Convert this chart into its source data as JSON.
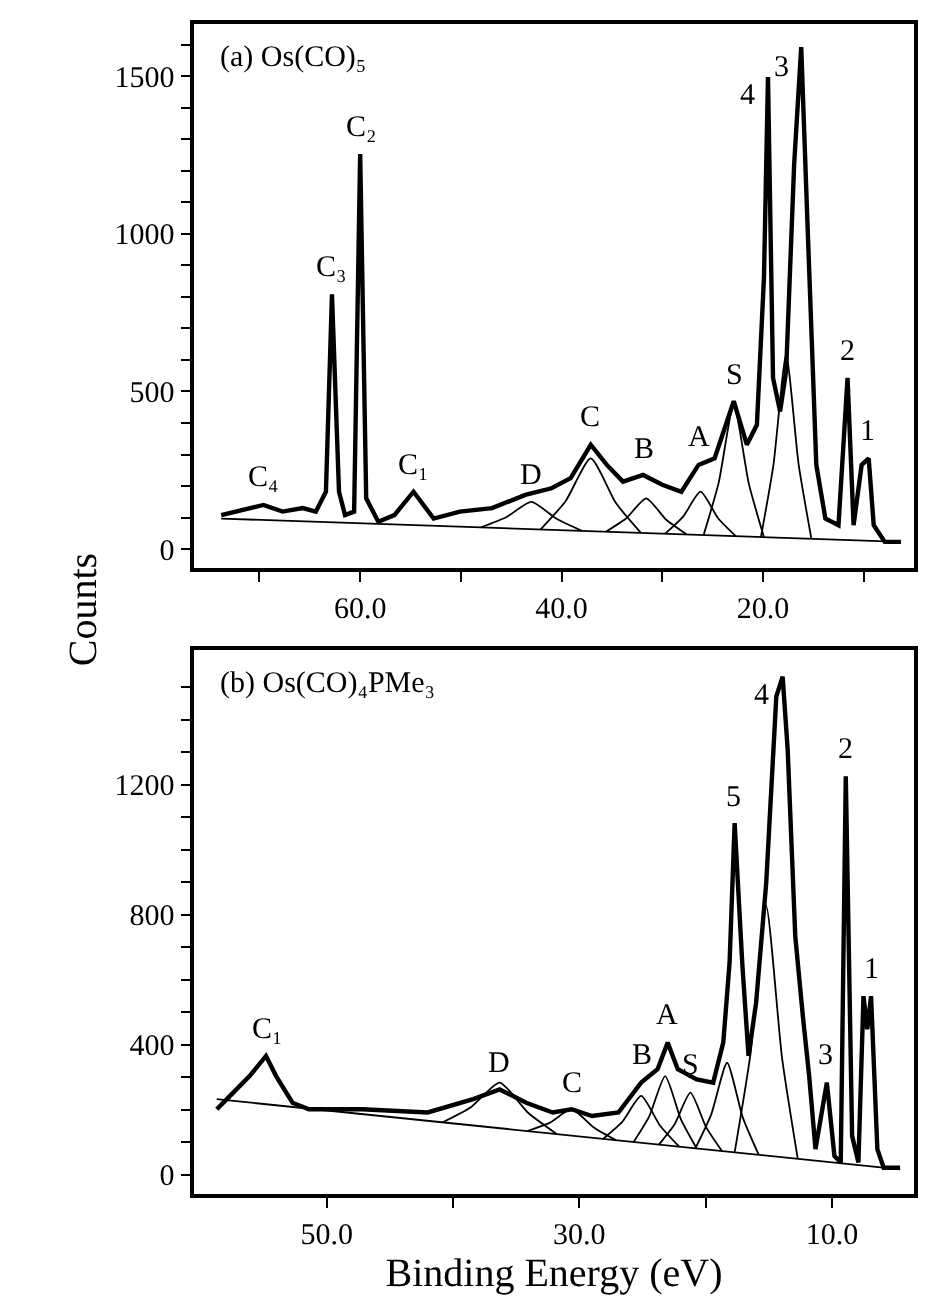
{
  "chart_data": [
    {
      "type": "line",
      "ylabel": "Counts",
      "xlim": [
        76.5,
        5
      ],
      "ylim": [
        -60,
        1665
      ],
      "xticks": [
        {
          "value": 70,
          "label": null
        },
        {
          "value": 60,
          "label": "60.0"
        },
        {
          "value": 50,
          "label": null
        },
        {
          "value": 40,
          "label": "40.0"
        },
        {
          "value": 30,
          "label": null
        },
        {
          "value": 20,
          "label": "20.0"
        },
        {
          "value": 10,
          "label": null
        }
      ],
      "yticks": [
        0,
        {
          "value": 100,
          "label": null
        },
        {
          "value": 200,
          "label": null
        },
        {
          "value": 300,
          "label": null
        },
        {
          "value": 400,
          "label": null
        },
        500,
        {
          "value": 600,
          "label": null
        },
        {
          "value": 700,
          "label": null
        },
        {
          "value": 800,
          "label": null
        },
        {
          "value": 900,
          "label": null
        },
        1000,
        {
          "value": 1100,
          "label": null
        },
        {
          "value": 1200,
          "label": null
        },
        {
          "value": 1300,
          "label": null
        },
        {
          "value": 1400,
          "label": null
        },
        1500,
        {
          "value": 1600,
          "label": null
        }
      ],
      "series": [
        {
          "color": "#000000",
          "x": [
            73.8,
            69.6,
            67.7,
            65.7,
            64.4,
            63.4,
            62.8,
            62.1,
            61.5,
            60.6,
            60,
            59.4,
            58.2,
            56.6,
            54.7,
            52.7,
            50.1,
            46.9,
            43.6,
            41.0,
            39.1,
            37.1,
            35.5,
            33.9,
            31.9,
            30,
            28.1,
            26.4,
            24.8,
            22.9,
            21.6,
            20.6,
            19.9,
            19.5,
            19,
            18.3,
            17.7,
            16.9,
            16.2,
            15.6,
            14.7,
            13.8,
            12.5,
            11.6,
            11.0,
            10.2,
            9.5,
            9.0,
            7.9,
            6.3
          ],
          "values": [
            108,
            140,
            119,
            130,
            119,
            182,
            808,
            182,
            108,
            119,
            1253,
            161,
            87,
            108,
            182,
            97,
            119,
            130,
            172,
            193,
            225,
            331,
            267,
            214,
            235,
            204,
            182,
            267,
            288,
            469,
            331,
            394,
            861,
            1497,
            543,
            437,
            564,
            1221,
            1592,
            1052,
            267,
            97,
            76,
            543,
            76,
            267,
            288,
            76,
            23,
            23
          ]
        },
        {
          "color": "#000000",
          "x": [
            73.8,
            6.3
          ],
          "values": [
            97,
            23
          ]
        },
        {
          "color": "#000000",
          "x": [
            48,
            45.5,
            43,
            40.5,
            38
          ],
          "values": [
            69,
            101,
            150,
            96,
            58
          ]
        },
        {
          "color": "#000000",
          "x": [
            42.1,
            39.6,
            37.1,
            34.6,
            32.1
          ],
          "values": [
            62,
            152,
            288,
            146,
            51
          ]
        },
        {
          "color": "#000000",
          "x": [
            35.6,
            33.6,
            31.6,
            29.6,
            27.6
          ],
          "values": [
            55,
            97,
            161,
            93,
            47
          ]
        },
        {
          "color": "#000000",
          "x": [
            29.7,
            27.95,
            26.2,
            24.45,
            22.7
          ],
          "values": [
            49,
            102,
            182,
            98,
            41
          ]
        },
        {
          "color": "#000000",
          "x": [
            25.9,
            24.4,
            22.9,
            21.4,
            19.9
          ],
          "values": [
            44,
            210,
            458,
            207,
            38
          ]
        },
        {
          "color": "#000000",
          "x": [
            20.2,
            18.95,
            17.7,
            16.45,
            15.2
          ],
          "values": [
            38,
            269,
            617,
            267,
            35
          ]
        }
      ],
      "annotations": [
        "(a) Os(CO)₅",
        {
          "text": "C₄",
          "x": 69.6,
          "y": 140
        },
        {
          "text": "C₃",
          "x": 62.8,
          "y": 808
        },
        {
          "text": "C₂",
          "x": 60,
          "y": 1253
        },
        {
          "text": "C₁",
          "x": 54.7,
          "y": 182
        },
        {
          "text": "D",
          "x": 43,
          "y": 150
        },
        {
          "text": "C",
          "x": 37.1,
          "y": 331
        },
        {
          "text": "B",
          "x": 31.9,
          "y": 235
        },
        {
          "text": "A",
          "x": 26.4,
          "y": 267
        },
        {
          "text": "S",
          "x": 22.9,
          "y": 469
        },
        {
          "text": "4",
          "x": 19.5,
          "y": 1497
        },
        {
          "text": "3",
          "x": 16.2,
          "y": 1592
        },
        {
          "text": "2",
          "x": 11.6,
          "y": 543
        },
        {
          "text": "1",
          "x": 9.5,
          "y": 288
        }
      ]
    },
    {
      "type": "line",
      "xlabel": "Binding Energy (eV)",
      "xlim": [
        60.5,
        3.5
      ],
      "ylim": [
        -60,
        1615
      ],
      "xticks": [
        {
          "value": 50,
          "label": "50.0"
        },
        {
          "value": 40,
          "label": null
        },
        {
          "value": 30,
          "label": "30.0"
        },
        {
          "value": 20,
          "label": null
        },
        {
          "value": 10,
          "label": "10.0"
        }
      ],
      "yticks": [
        0,
        {
          "value": 100,
          "label": null
        },
        {
          "value": 200,
          "label": null
        },
        {
          "value": 300,
          "label": null
        },
        400,
        {
          "value": 500,
          "label": null
        },
        {
          "value": 600,
          "label": null
        },
        {
          "value": 700,
          "label": null
        },
        800,
        {
          "value": 900,
          "label": null
        },
        {
          "value": 1000,
          "label": null
        },
        {
          "value": 1100,
          "label": null
        },
        1200,
        {
          "value": 1300,
          "label": null
        },
        {
          "value": 1400,
          "label": null
        },
        {
          "value": 1500,
          "label": null
        }
      ],
      "series": [
        {
          "color": "#000000",
          "x": [
            58.7,
            57.9,
            56.1,
            54.8,
            54.0,
            52.7,
            51.4,
            47.2,
            42.0,
            38.4,
            36.3,
            34.2,
            32.1,
            30.6,
            29.0,
            26.9,
            25.1,
            23.8,
            23.0,
            22.2,
            20.7,
            19.4,
            18.6,
            18.1,
            17.7,
            17.1,
            16.6,
            16.0,
            15.2,
            14.4,
            13.9,
            13.5,
            12.9,
            12.3,
            11.8,
            11.3,
            10.4,
            9.8,
            9.3,
            8.9,
            8.4,
            7.9,
            7.5,
            7.2,
            6.9,
            6.4,
            5.9,
            4.6
          ],
          "values": [
            201,
            232,
            303,
            365,
            303,
            221,
            201,
            201,
            191,
            232,
            262,
            221,
            191,
            201,
            180,
            191,
            283,
            324,
            406,
            324,
            293,
            283,
            406,
            652,
            1082,
            652,
            365,
            529,
            898,
            1472,
            1533,
            1308,
            734,
            488,
            303,
            78,
            283,
            57,
            37,
            1226,
            119,
            37,
            549,
            447,
            549,
            78,
            21,
            21
          ]
        },
        {
          "color": "#000000",
          "x": [
            58.7,
            4.6
          ],
          "values": [
            232,
            16
          ]
        },
        {
          "color": "#000000",
          "x": [
            40.8,
            38.55,
            36.3,
            34.05,
            31.8
          ],
          "values": [
            161,
            208,
            283,
            190,
            125
          ]
        },
        {
          "color": "#000000",
          "x": [
            34.1,
            32.35,
            30.6,
            28.85,
            27.1
          ],
          "values": [
            134,
            159,
            201,
            145,
            106
          ]
        },
        {
          "color": "#000000",
          "x": [
            28.1,
            26.6,
            25.1,
            23.6,
            22.1
          ],
          "values": [
            110,
            162,
            242,
            150,
            86
          ]
        },
        {
          "color": "#000000",
          "x": [
            25.7,
            24.45,
            23.2,
            21.95,
            20.7
          ],
          "values": [
            100,
            180,
            303,
            170,
            80
          ]
        },
        {
          "color": "#000000",
          "x": [
            23.7,
            22.45,
            21.2,
            19.95,
            18.7
          ],
          "values": [
            92,
            155,
            252,
            145,
            72
          ]
        },
        {
          "color": "#000000",
          "x": [
            20.8,
            19.55,
            18.3,
            17.05,
            15.8
          ],
          "values": [
            81,
            185,
            344,
            175,
            61
          ]
        },
        {
          "color": "#000000",
          "x": [
            17.7,
            16.45,
            15.2,
            13.95,
            12.7
          ],
          "values": [
            68,
            370,
            826,
            360,
            48
          ]
        }
      ],
      "annotations": [
        "(b) Os(CO)₄PMe₃",
        {
          "text": "C₁",
          "x": 54.8,
          "y": 365
        },
        {
          "text": "D",
          "x": 36.3,
          "y": 262
        },
        {
          "text": "C",
          "x": 30.6,
          "y": 201
        },
        {
          "text": "B",
          "x": 25.1,
          "y": 283
        },
        {
          "text": "A",
          "x": 23.0,
          "y": 406
        },
        {
          "text": "S",
          "x": 21.2,
          "y": 252
        },
        {
          "text": "5",
          "x": 17.7,
          "y": 1082
        },
        {
          "text": "4",
          "x": 13.9,
          "y": 1533
        },
        {
          "text": "2",
          "x": 8.9,
          "y": 1226
        },
        {
          "text": "3",
          "x": 10.4,
          "y": 283
        },
        {
          "text": "1",
          "x": 6.9,
          "y": 549
        }
      ]
    }
  ]
}
